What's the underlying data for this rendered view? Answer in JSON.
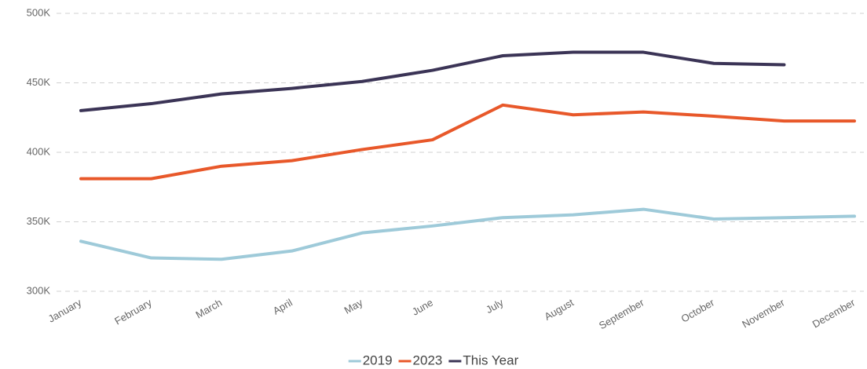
{
  "chart_data": {
    "type": "line",
    "categories": [
      "January",
      "February",
      "March",
      "April",
      "May",
      "June",
      "July",
      "August",
      "September",
      "October",
      "November",
      "December"
    ],
    "series": [
      {
        "name": "2019",
        "color": "#9ecad9",
        "values": [
          336000,
          324000,
          323000,
          329000,
          342000,
          347000,
          353000,
          355000,
          359000,
          352000,
          353000,
          354000
        ]
      },
      {
        "name": "2023",
        "color": "#e8582a",
        "values": [
          381000,
          381000,
          390000,
          394000,
          402000,
          409000,
          434000,
          427000,
          429000,
          426000,
          422500,
          422500
        ]
      },
      {
        "name": "This Year",
        "color": "#3b3456",
        "values": [
          430000,
          435000,
          442000,
          446000,
          451000,
          459000,
          469500,
          472000,
          472000,
          464000,
          463000,
          null
        ]
      }
    ],
    "ylim": [
      300000,
      500000
    ],
    "yticks": [
      {
        "value": 300000,
        "label": "300K"
      },
      {
        "value": 350000,
        "label": "350K"
      },
      {
        "value": 400000,
        "label": "400K"
      },
      {
        "value": 450000,
        "label": "450K"
      },
      {
        "value": 500000,
        "label": "500K"
      }
    ],
    "grid": true,
    "legend": "bottom"
  }
}
